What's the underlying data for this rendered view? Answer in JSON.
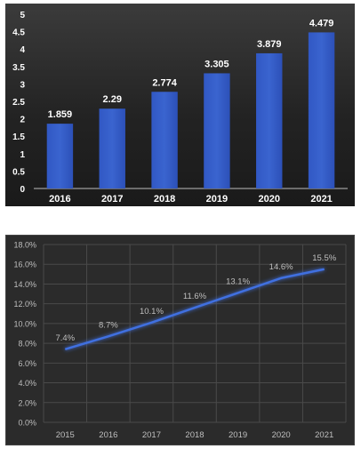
{
  "chart_data": [
    {
      "type": "bar",
      "categories": [
        "2016",
        "2017",
        "2018",
        "2019",
        "2020",
        "2021"
      ],
      "values": [
        1.859,
        2.29,
        2.774,
        3.305,
        3.879,
        4.479
      ],
      "data_labels": [
        "1.859",
        "2.29",
        "2.774",
        "3.305",
        "3.879",
        "4.479"
      ],
      "ylim": [
        0,
        5
      ],
      "yticks": [
        "0",
        "0.5",
        "1",
        "1.5",
        "2",
        "2.5",
        "3",
        "3.5",
        "4",
        "4.5",
        "5"
      ],
      "grid": false,
      "colors": {
        "bar": "#3a64cf",
        "background": "#2a2a2a",
        "text": "#ffffff"
      }
    },
    {
      "type": "line",
      "x": [
        "2015",
        "2016",
        "2017",
        "2018",
        "2019",
        "2020",
        "2021"
      ],
      "values": [
        7.4,
        8.7,
        10.1,
        11.6,
        13.1,
        14.6,
        15.5
      ],
      "data_labels": [
        "7.4%",
        "8.7%",
        "10.1%",
        "11.6%",
        "13.1%",
        "14.6%",
        "15.5%"
      ],
      "ylim": [
        0,
        18
      ],
      "yticks": [
        "0.0%",
        "2.0%",
        "4.0%",
        "6.0%",
        "8.0%",
        "10.0%",
        "12.0%",
        "14.0%",
        "16.0%",
        "18.0%"
      ],
      "grid": true,
      "colors": {
        "line": "#3f6fe0",
        "background": "#2b2b2b",
        "grid": "#4a4a4a",
        "text": "#bfbfbf"
      }
    }
  ]
}
